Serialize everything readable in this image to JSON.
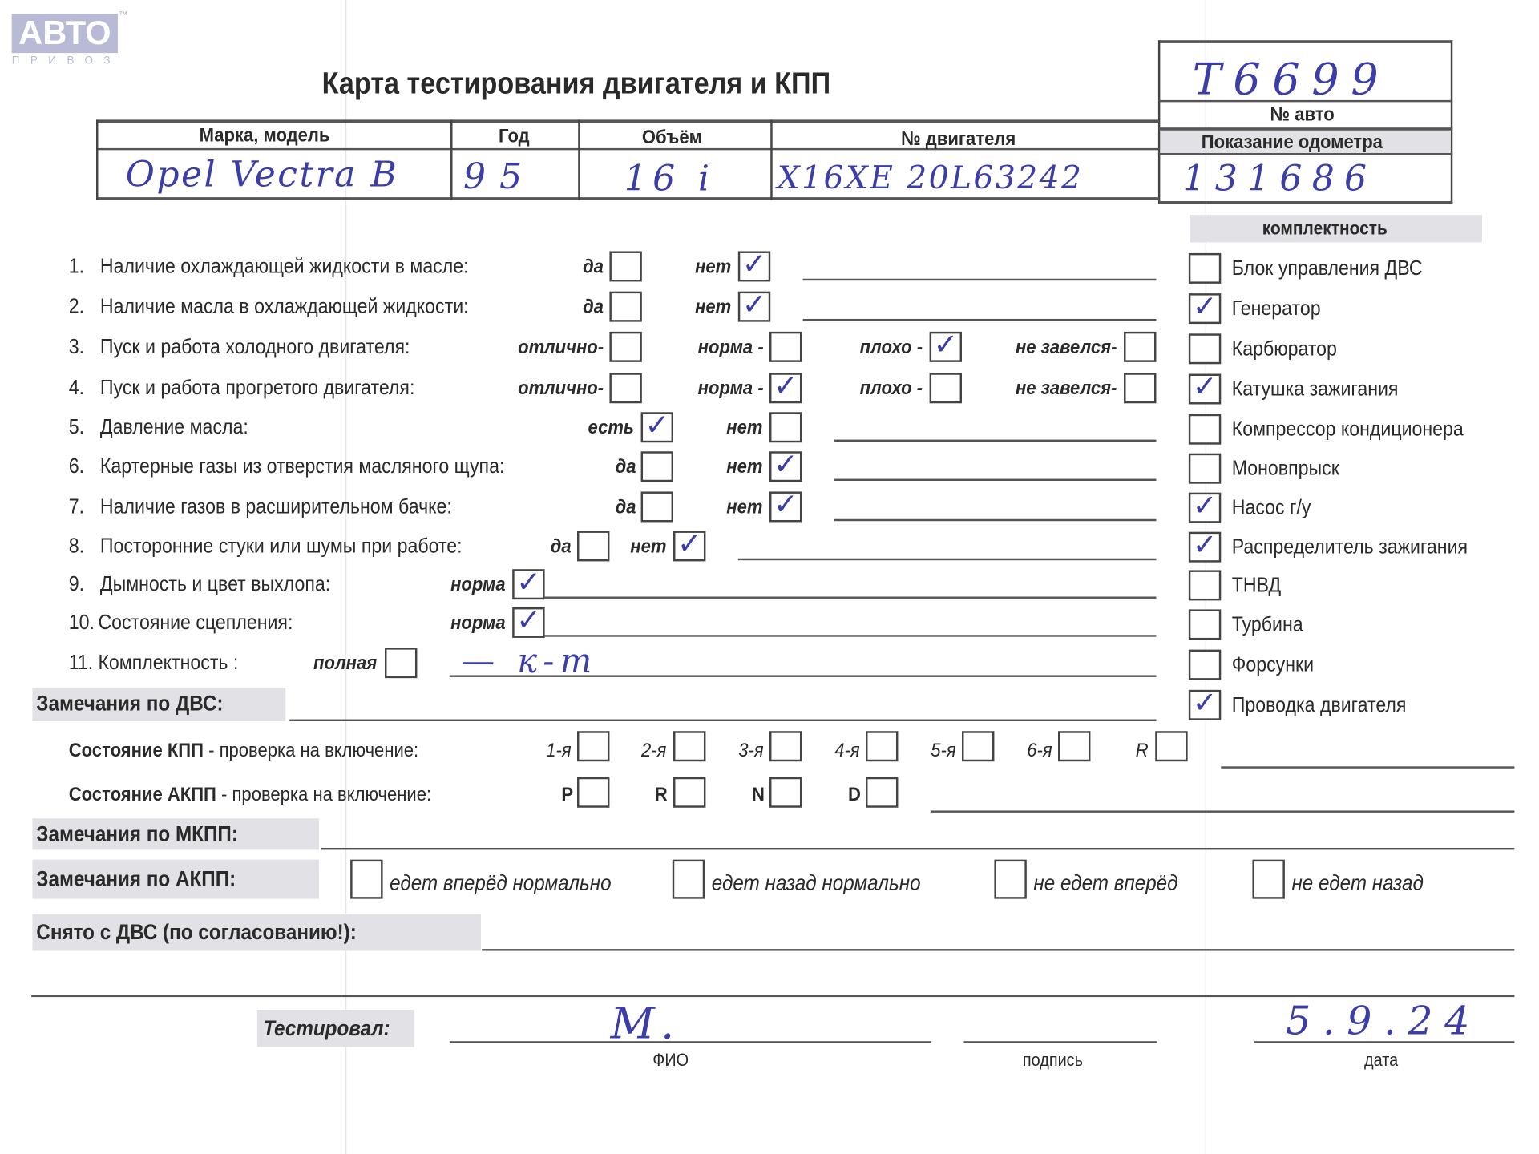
{
  "logo": {
    "text": "АВТО",
    "sub": "ПРИВОЗ",
    "tm": "™"
  },
  "title": "Карта тестирования двигателя  и КПП",
  "car_box": {
    "car_number": "T6699",
    "car_number_label": "№ авто",
    "odometer_label": "Показание одометра",
    "odometer": "131686"
  },
  "header_table": {
    "columns": [
      "Марка, модель",
      "Год",
      "Объём",
      "№ двигателя"
    ],
    "values": [
      "Opel Vectra B",
      "95",
      "16 i",
      "X16XE 20L63242"
    ]
  },
  "questions": [
    {
      "num": "1.",
      "label": "Наличие охлаждающей жидкости в масле:",
      "options": [
        {
          "label": "да",
          "checked": false
        },
        {
          "label": "нет",
          "checked": true
        }
      ]
    },
    {
      "num": "2.",
      "label": "Наличие масла в охлаждающей жидкости:",
      "options": [
        {
          "label": "да",
          "checked": false
        },
        {
          "label": "нет",
          "checked": true
        }
      ]
    },
    {
      "num": "3.",
      "label": "Пуск и работа холодного двигателя:",
      "options": [
        {
          "label": "отлично-",
          "checked": false
        },
        {
          "label": "норма -",
          "checked": false
        },
        {
          "label": "плохо -",
          "checked": true
        },
        {
          "label": "не завелся-",
          "checked": false
        }
      ]
    },
    {
      "num": "4.",
      "label": "Пуск и работа прогретого двигателя:",
      "options": [
        {
          "label": "отлично-",
          "checked": false
        },
        {
          "label": "норма -",
          "checked": true
        },
        {
          "label": "плохо -",
          "checked": false
        },
        {
          "label": "не завелся-",
          "checked": false
        }
      ]
    },
    {
      "num": "5.",
      "label": "Давление масла:",
      "options": [
        {
          "label": "есть",
          "checked": true
        },
        {
          "label": "нет",
          "checked": false
        }
      ]
    },
    {
      "num": "6.",
      "label": "Картерные газы из отверстия масляного щупа:",
      "options": [
        {
          "label": "да",
          "checked": false
        },
        {
          "label": "нет",
          "checked": true
        }
      ]
    },
    {
      "num": "7.",
      "label": "Наличие газов в расширительном бачке:",
      "options": [
        {
          "label": "да",
          "checked": false
        },
        {
          "label": "нет",
          "checked": true
        }
      ]
    },
    {
      "num": "8.",
      "label": "Посторонние стуки или шумы при работе:",
      "options": [
        {
          "label": "да",
          "checked": false
        },
        {
          "label": "нет",
          "checked": true
        }
      ]
    },
    {
      "num": "9.",
      "label": "Дымность и цвет выхлопа:",
      "options": [
        {
          "label": "норма",
          "checked": true
        }
      ]
    },
    {
      "num": "10.",
      "label": "Состояние сцепления:",
      "options": [
        {
          "label": "норма",
          "checked": true
        }
      ]
    },
    {
      "num": "11.",
      "label": "Комплектность :",
      "options": [
        {
          "label": "полная",
          "checked": false
        }
      ],
      "note": "— к-т"
    }
  ],
  "completeness": {
    "title": "комплектность",
    "items": [
      {
        "label": "Блок управления ДВС",
        "checked": false
      },
      {
        "label": "Генератор",
        "checked": true
      },
      {
        "label": "Карбюратор",
        "checked": false
      },
      {
        "label": "Катушка зажигания",
        "checked": true
      },
      {
        "label": "Компрессор кондиционера",
        "checked": false
      },
      {
        "label": "Моновпрыск",
        "checked": false
      },
      {
        "label": "Насос г/у",
        "checked": true
      },
      {
        "label": "Распределитель зажигания",
        "checked": true
      },
      {
        "label": "ТНВД",
        "checked": false
      },
      {
        "label": "Турбина",
        "checked": false
      },
      {
        "label": "Форсунки",
        "checked": false
      },
      {
        "label": "Проводка двигателя",
        "checked": true
      }
    ]
  },
  "engine_remarks_label": "Замечания по ДВС:",
  "manual_gearbox": {
    "label": "Состояние КПП",
    "suffix": " - проверка на включение:",
    "gears": [
      "1-я",
      "2-я",
      "3-я",
      "4-я",
      "5-я",
      "6-я",
      "R"
    ]
  },
  "auto_gearbox": {
    "label": "Состояние АКПП",
    "suffix": " - проверка на включение:",
    "gears": [
      "P",
      "R",
      "N",
      "D"
    ]
  },
  "manual_remarks_label": "Замечания по МКПП:",
  "auto_remarks": {
    "label": "Замечания по АКПП:",
    "options": [
      "едет вперёд нормально",
      "едет назад нормально",
      "не едет вперёд",
      "не едет назад"
    ]
  },
  "removed_label": "Снято с ДВС (по согласованию!):",
  "tested": {
    "label": "Тестировал:",
    "name": "М.",
    "date": "5.9.24",
    "name_caption": "ФИО",
    "signature_caption": "подпись",
    "date_caption": "дата"
  },
  "colors": {
    "ink": "#3b3ea8",
    "grey_fill": "#e2e2e6",
    "logo": "#b9bad6"
  }
}
